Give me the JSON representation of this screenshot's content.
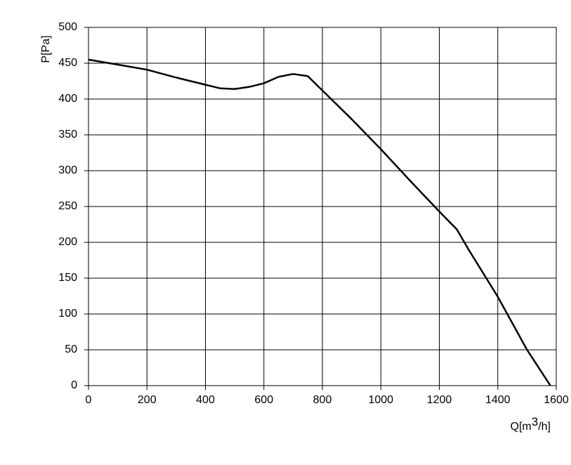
{
  "chart_data": {
    "type": "line",
    "x_label": [
      "Q[m",
      "3",
      "/h]"
    ],
    "y_label": "P[Pa]",
    "series": [
      {
        "color": "#000000",
        "x": [
          0,
          100,
          200,
          300,
          400,
          450,
          500,
          550,
          600,
          650,
          700,
          750,
          800,
          900,
          1000,
          1100,
          1200,
          1260,
          1300,
          1400,
          1500,
          1580
        ],
        "values": [
          455,
          448,
          441,
          430,
          420,
          415,
          414,
          417,
          422,
          431,
          435,
          432,
          412,
          372,
          330,
          286,
          243,
          218,
          190,
          124,
          50,
          0
        ]
      }
    ],
    "xlim": [
      0,
      1600
    ],
    "xticks": [
      0,
      200,
      400,
      600,
      800,
      1000,
      1200,
      1400,
      1600
    ],
    "ylim": [
      0,
      500
    ],
    "yticks": [
      0,
      50,
      100,
      150,
      200,
      250,
      300,
      350,
      400,
      450,
      500
    ],
    "grid": true
  }
}
